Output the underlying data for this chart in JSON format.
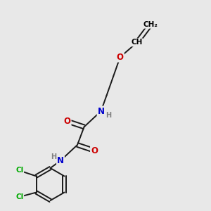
{
  "background_color": "#e8e8e8",
  "atom_colors": {
    "C": "#000000",
    "H": "#808080",
    "N": "#0000cc",
    "O": "#cc0000",
    "Cl": "#00aa00"
  },
  "bond_color": "#1a1a1a",
  "bond_width": 1.4,
  "figsize": [
    3.0,
    3.0
  ],
  "dpi": 100,
  "xlim": [
    0,
    10
  ],
  "ylim": [
    0,
    10
  ]
}
